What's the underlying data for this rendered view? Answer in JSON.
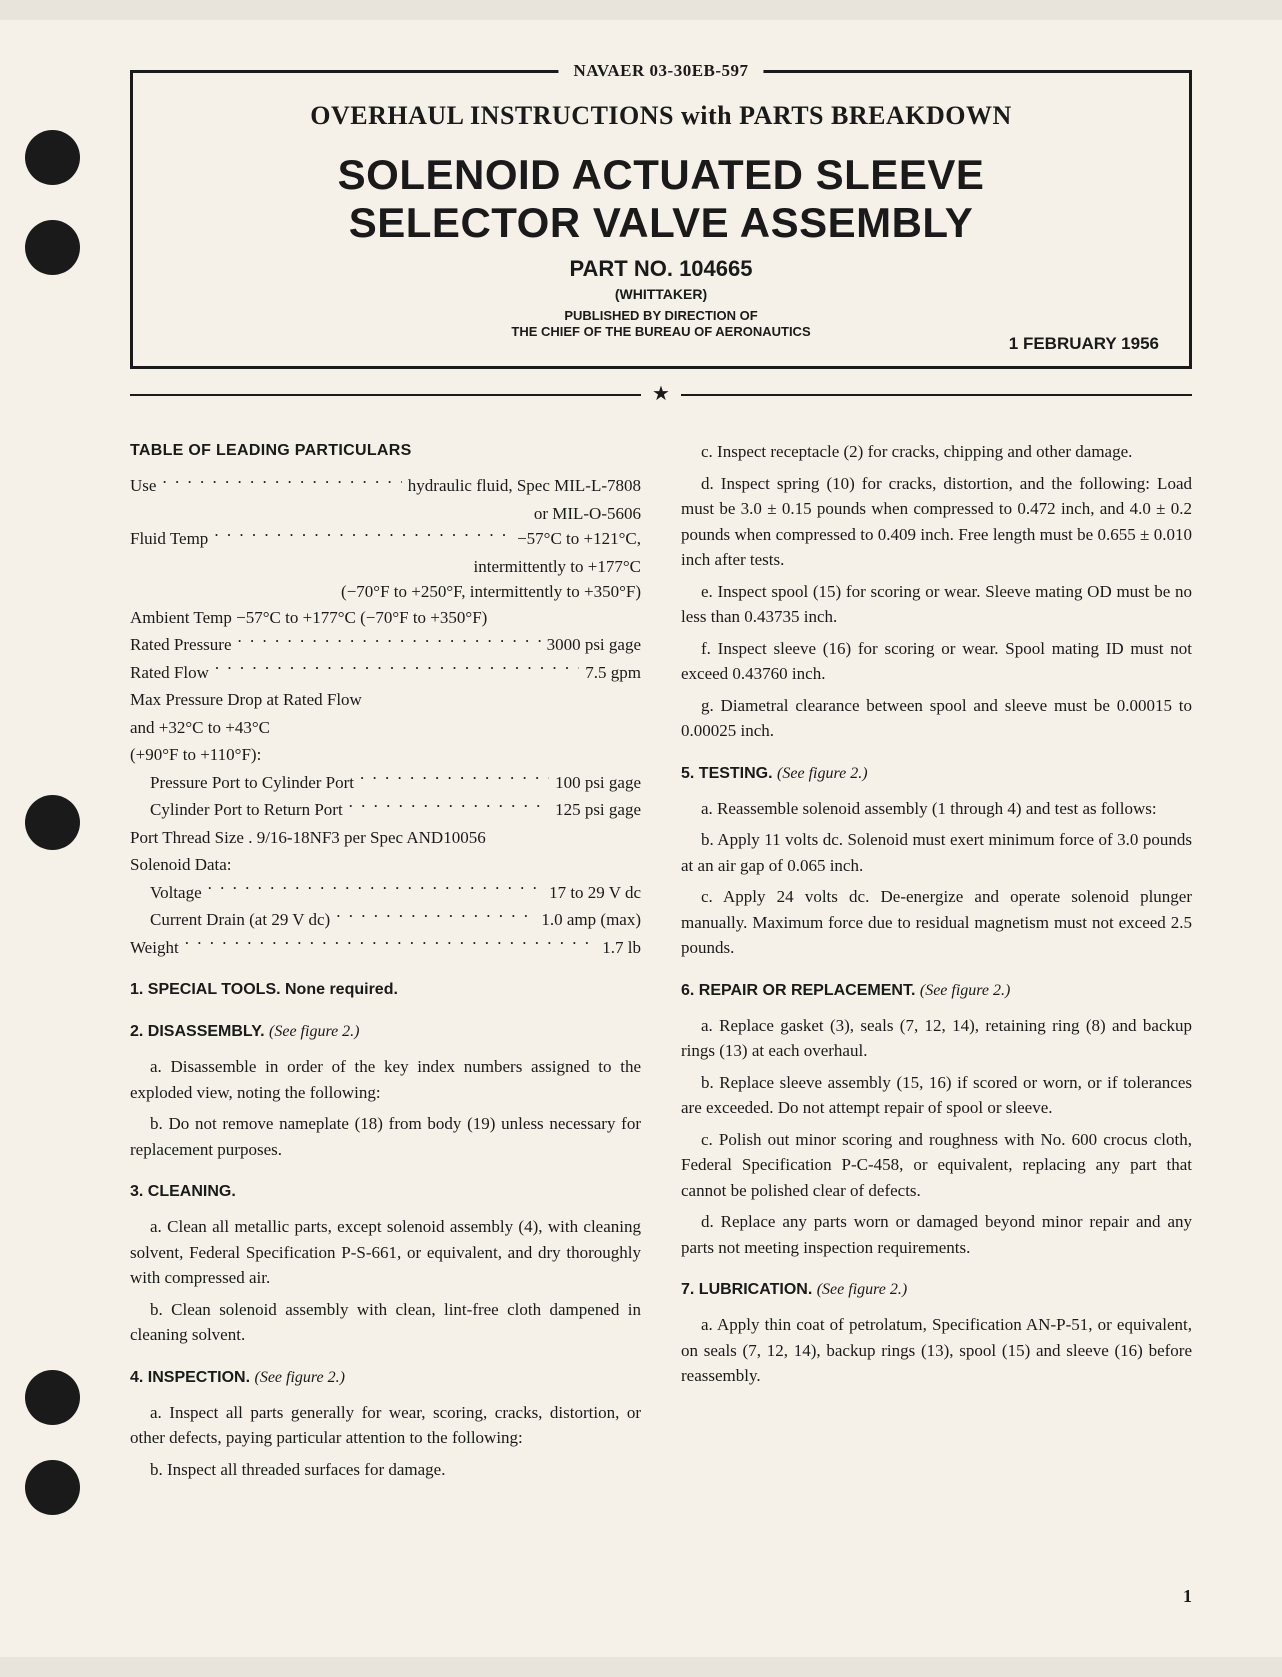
{
  "header": {
    "doc_number": "NAVAER 03-30EB-597",
    "overhaul_line": "OVERHAUL INSTRUCTIONS with PARTS BREAKDOWN",
    "title_line1": "SOLENOID ACTUATED SLEEVE",
    "title_line2": "SELECTOR VALVE ASSEMBLY",
    "part_no": "PART NO. 104665",
    "manufacturer": "(WHITTAKER)",
    "published_line1": "PUBLISHED BY DIRECTION OF",
    "published_line2": "THE CHIEF OF THE BUREAU OF AERONAUTICS",
    "date": "1 FEBRUARY 1956"
  },
  "table_title": "TABLE OF LEADING PARTICULARS",
  "specs": {
    "use_label": "Use",
    "use_value": "hydraulic fluid, Spec MIL-L-7808",
    "use_value2": "or MIL-O-5606",
    "fluid_temp_label": "Fluid Temp",
    "fluid_temp_value": "−57°C to +121°C,",
    "fluid_temp_value2": "intermittently to +177°C",
    "fluid_temp_value3": "(−70°F to +250°F, intermittently to +350°F)",
    "ambient_label": "Ambient Temp",
    "ambient_value": "−57°C to +177°C (−70°F to +350°F)",
    "rated_pressure_label": "Rated Pressure",
    "rated_pressure_value": "3000 psi gage",
    "rated_flow_label": "Rated Flow",
    "rated_flow_value": "7.5 gpm",
    "max_drop_line1": "Max Pressure Drop at Rated Flow",
    "max_drop_line2": "and +32°C to +43°C",
    "max_drop_line3": "(+90°F to +110°F):",
    "press_port_label": "Pressure Port to Cylinder Port",
    "press_port_value": "100 psi gage",
    "cyl_port_label": "Cylinder Port to Return Port",
    "cyl_port_value": "125 psi gage",
    "port_thread_label": "Port Thread Size",
    "port_thread_value": "9/16-18NF3 per Spec AND10056",
    "solenoid_data_label": "Solenoid Data:",
    "voltage_label": "Voltage",
    "voltage_value": "17 to 29 V dc",
    "current_label": "Current Drain (at 29 V dc)",
    "current_value": "1.0 amp (max)",
    "weight_label": "Weight",
    "weight_value": "1.7 lb"
  },
  "sections": {
    "s1_head": "1. SPECIAL TOOLS. None required.",
    "s2_head": "2. DISASSEMBLY.",
    "s2_fig": "(See figure 2.)",
    "s2a": "a. Disassemble in order of the key index numbers assigned to the exploded view, noting the following:",
    "s2b": "b. Do not remove nameplate (18) from body (19) unless necessary for replacement purposes.",
    "s3_head": "3. CLEANING.",
    "s3a": "a. Clean all metallic parts, except solenoid assembly (4), with cleaning solvent, Federal Specification P-S-661, or equivalent, and dry thoroughly with compressed air.",
    "s3b": "b. Clean solenoid assembly with clean, lint-free cloth dampened in cleaning solvent.",
    "s4_head": "4. INSPECTION.",
    "s4_fig": "(See figure 2.)",
    "s4a": "a. Inspect all parts generally for wear, scoring, cracks, distortion, or other defects, paying particular attention to the following:",
    "s4b": "b. Inspect all threaded surfaces for damage.",
    "s4c": "c. Inspect receptacle (2) for cracks, chipping and other damage.",
    "s4d": "d. Inspect spring (10) for cracks, distortion, and the following: Load must be 3.0 ± 0.15 pounds when compressed to 0.472 inch, and 4.0 ± 0.2 pounds when compressed to 0.409 inch. Free length must be 0.655 ± 0.010 inch after tests.",
    "s4e": "e. Inspect spool (15) for scoring or wear. Sleeve mating OD must be no less than 0.43735 inch.",
    "s4f": "f. Inspect sleeve (16) for scoring or wear. Spool mating ID must not exceed 0.43760 inch.",
    "s4g": "g. Diametral clearance between spool and sleeve must be 0.00015 to 0.00025 inch.",
    "s5_head": "5. TESTING.",
    "s5_fig": "(See figure 2.)",
    "s5a": "a. Reassemble solenoid assembly (1 through 4) and test as follows:",
    "s5b": "b. Apply 11 volts dc. Solenoid must exert minimum force of 3.0 pounds at an air gap of 0.065 inch.",
    "s5c": "c. Apply 24 volts dc. De-energize and operate solenoid plunger manually. Maximum force due to residual magnetism must not exceed 2.5 pounds.",
    "s6_head": "6. REPAIR OR REPLACEMENT.",
    "s6_fig": "(See figure 2.)",
    "s6a": "a. Replace gasket (3), seals (7, 12, 14), retaining ring (8) and backup rings (13) at each overhaul.",
    "s6b": "b. Replace sleeve assembly (15, 16) if scored or worn, or if tolerances are exceeded. Do not attempt repair of spool or sleeve.",
    "s6c": "c. Polish out minor scoring and roughness with No. 600 crocus cloth, Federal Specification P-C-458, or equivalent, replacing any part that cannot be polished clear of defects.",
    "s6d": "d. Replace any parts worn or damaged beyond minor repair and any parts not meeting inspection requirements.",
    "s7_head": "7. LUBRICATION.",
    "s7_fig": "(See figure 2.)",
    "s7a": "a. Apply thin coat of petrolatum, Specification AN-P-51, or equivalent, on seals (7, 12, 14), backup rings (13), spool (15) and sleeve (16) before reassembly."
  },
  "page_number": "1",
  "colors": {
    "page_bg": "#f5f1e8",
    "text": "#1a1a1a",
    "hole": "#1a1a1a"
  }
}
